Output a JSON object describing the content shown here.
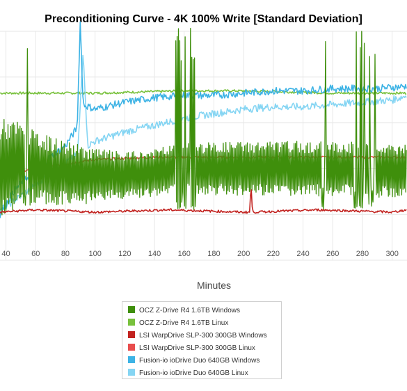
{
  "chart_data": {
    "type": "line",
    "title": "Preconditioning Curve - 4K 100% Write [Standard Deviation]",
    "xlabel": "Minutes",
    "ylabel": "",
    "x_ticks": [
      40,
      60,
      80,
      100,
      120,
      140,
      160,
      180,
      200,
      220,
      240,
      260,
      280,
      300
    ],
    "xlim": [
      36,
      310
    ],
    "ylim": [
      0,
      100
    ],
    "grid": true,
    "legend_position": "bottom-center",
    "series": [
      {
        "name": "OCZ Z-Drive R4 1.6TB Windows",
        "color": "#3f8f0c",
        "mode": "oscillating",
        "points": [
          [
            36,
            40
          ],
          [
            50,
            42
          ],
          [
            60,
            40
          ],
          [
            80,
            38
          ],
          [
            100,
            37
          ],
          [
            120,
            37
          ],
          [
            140,
            38
          ],
          [
            156,
            40
          ],
          [
            200,
            40
          ],
          [
            240,
            40
          ],
          [
            270,
            40
          ],
          [
            300,
            39
          ],
          [
            310,
            39
          ]
        ],
        "amplitude": [
          [
            36,
            22
          ],
          [
            60,
            16
          ],
          [
            90,
            13
          ],
          [
            120,
            10
          ],
          [
            155,
            11
          ],
          [
            200,
            12
          ],
          [
            260,
            12
          ],
          [
            310,
            12
          ]
        ],
        "spikes": [
          [
            52,
            55,
            102
          ],
          [
            154,
            168,
            102
          ],
          [
            252,
            256,
            102
          ],
          [
            274,
            290,
            102
          ]
        ]
      },
      {
        "name": "OCZ Z-Drive R4 1.6TB Linux",
        "color": "#78c13c",
        "mode": "flat",
        "points": [
          [
            36,
            73
          ],
          [
            100,
            73
          ],
          [
            160,
            74
          ],
          [
            200,
            74
          ],
          [
            260,
            73
          ],
          [
            310,
            73
          ]
        ]
      },
      {
        "name": "LSI WarpDrive SLP-300 300GB Windows",
        "color": "#c22320",
        "mode": "flat",
        "points": [
          [
            36,
            21
          ],
          [
            60,
            22
          ],
          [
            100,
            21
          ],
          [
            150,
            22
          ],
          [
            200,
            21
          ],
          [
            204,
            21
          ],
          [
            205,
            33
          ],
          [
            206,
            21
          ],
          [
            250,
            22
          ],
          [
            300,
            21
          ],
          [
            310,
            22
          ]
        ]
      },
      {
        "name": "LSI WarpDrive SLP-300 300GB Linux",
        "color": "#e84d4d",
        "mode": "flat",
        "points": [
          [
            36,
            38
          ],
          [
            50,
            39
          ],
          [
            80,
            42
          ],
          [
            100,
            44
          ],
          [
            140,
            45
          ],
          [
            200,
            45
          ],
          [
            260,
            45
          ],
          [
            310,
            45
          ]
        ]
      },
      {
        "name": "Fusion-io ioDrive Duo 640GB Windows",
        "color": "#3db3e5",
        "mode": "noisy",
        "points": [
          [
            36,
            20
          ],
          [
            45,
            30
          ],
          [
            60,
            40
          ],
          [
            80,
            50
          ],
          [
            88,
            58
          ],
          [
            90,
            104
          ],
          [
            92,
            68
          ],
          [
            100,
            66
          ],
          [
            120,
            69
          ],
          [
            140,
            71
          ],
          [
            160,
            72
          ],
          [
            180,
            72
          ],
          [
            200,
            73
          ],
          [
            220,
            74
          ],
          [
            240,
            74
          ],
          [
            260,
            75
          ],
          [
            290,
            75
          ],
          [
            310,
            76
          ]
        ]
      },
      {
        "name": "Fusion-io ioDrive Duo 640GB Linux",
        "color": "#85d5f3",
        "mode": "noisy",
        "points": [
          [
            36,
            22
          ],
          [
            50,
            28
          ],
          [
            70,
            38
          ],
          [
            88,
            46
          ],
          [
            89,
            54
          ],
          [
            92,
            92
          ],
          [
            95,
            50
          ],
          [
            100,
            52
          ],
          [
            120,
            56
          ],
          [
            140,
            59
          ],
          [
            160,
            62
          ],
          [
            180,
            64
          ],
          [
            200,
            66
          ],
          [
            220,
            67
          ],
          [
            240,
            67
          ],
          [
            260,
            68
          ],
          [
            280,
            69
          ],
          [
            300,
            70
          ],
          [
            310,
            72
          ]
        ]
      }
    ]
  }
}
